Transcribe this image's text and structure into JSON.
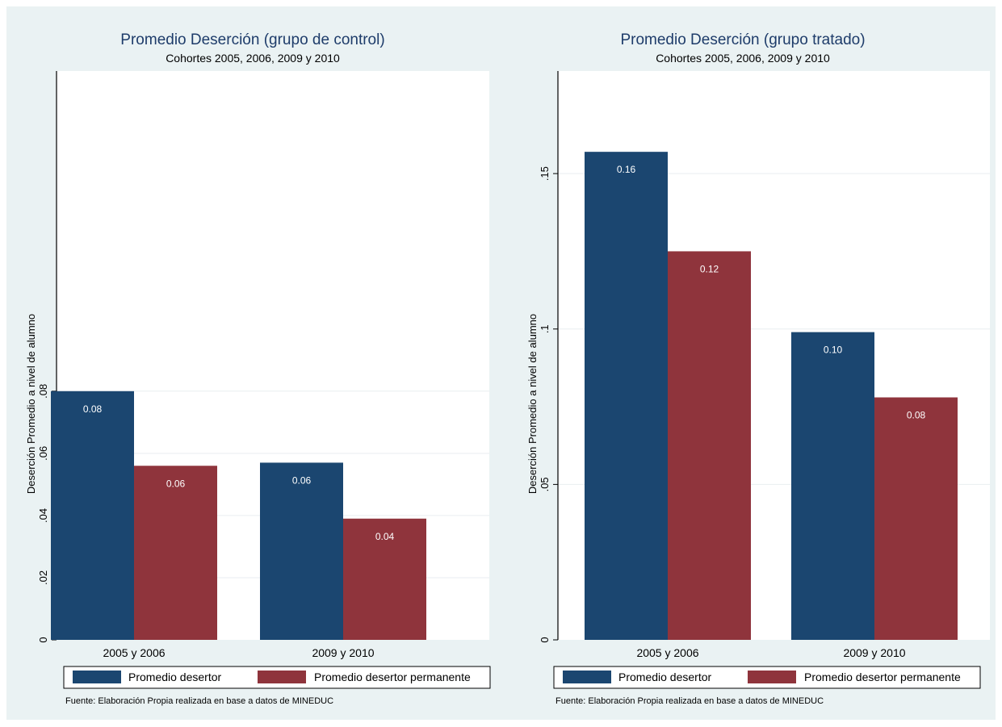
{
  "chart_data": [
    {
      "type": "bar",
      "title": "Promedio Deserción (grupo de control)",
      "subtitle": "Cohortes 2005, 2006, 2009 y 2010",
      "ylabel": "Deserción Promedio a nivel de alumno",
      "xlabel": "",
      "categories": [
        "2005 y 2006",
        "2009 y 2010"
      ],
      "series": [
        {
          "name": "Promedio desertor",
          "values": [
            0.08,
            0.057
          ],
          "labels": [
            "0.08",
            "0.06"
          ],
          "color": "#1b4670"
        },
        {
          "name": "Promedio desertor permanente",
          "values": [
            0.056,
            0.039
          ],
          "labels": [
            "0.06",
            "0.04"
          ],
          "color": "#8f343c"
        }
      ],
      "ylim": [
        0,
        0.183
      ],
      "yticks": [
        0,
        0.02,
        0.04,
        0.06,
        0.08
      ],
      "ytick_labels": [
        "0",
        ".02",
        ".04",
        ".06",
        ".08"
      ],
      "grid": true,
      "legend": "bottom",
      "note": "Fuente: Elaboración Propia realizada en base a datos de MINEDUC"
    },
    {
      "type": "bar",
      "title": "Promedio Deserción (grupo tratado)",
      "subtitle": "Cohortes 2005, 2006, 2009 y 2010",
      "ylabel": "Deserción Promedio a nivel de alumno",
      "xlabel": "",
      "categories": [
        "2005 y 2006",
        "2009 y 2010"
      ],
      "series": [
        {
          "name": "Promedio desertor",
          "values": [
            0.157,
            0.099
          ],
          "labels": [
            "0.16",
            "0.10"
          ],
          "color": "#1b4670"
        },
        {
          "name": "Promedio desertor permanente",
          "values": [
            0.125,
            0.078
          ],
          "labels": [
            "0.12",
            "0.08"
          ],
          "color": "#8f343c"
        }
      ],
      "ylim": [
        0,
        0.183
      ],
      "yticks": [
        0,
        0.05,
        0.1,
        0.15
      ],
      "ytick_labels": [
        "0",
        ".05",
        ".1",
        ".15"
      ],
      "grid": true,
      "legend": "bottom",
      "note": "Fuente: Elaboración Propia realizada en base a datos de MINEDUC"
    }
  ]
}
